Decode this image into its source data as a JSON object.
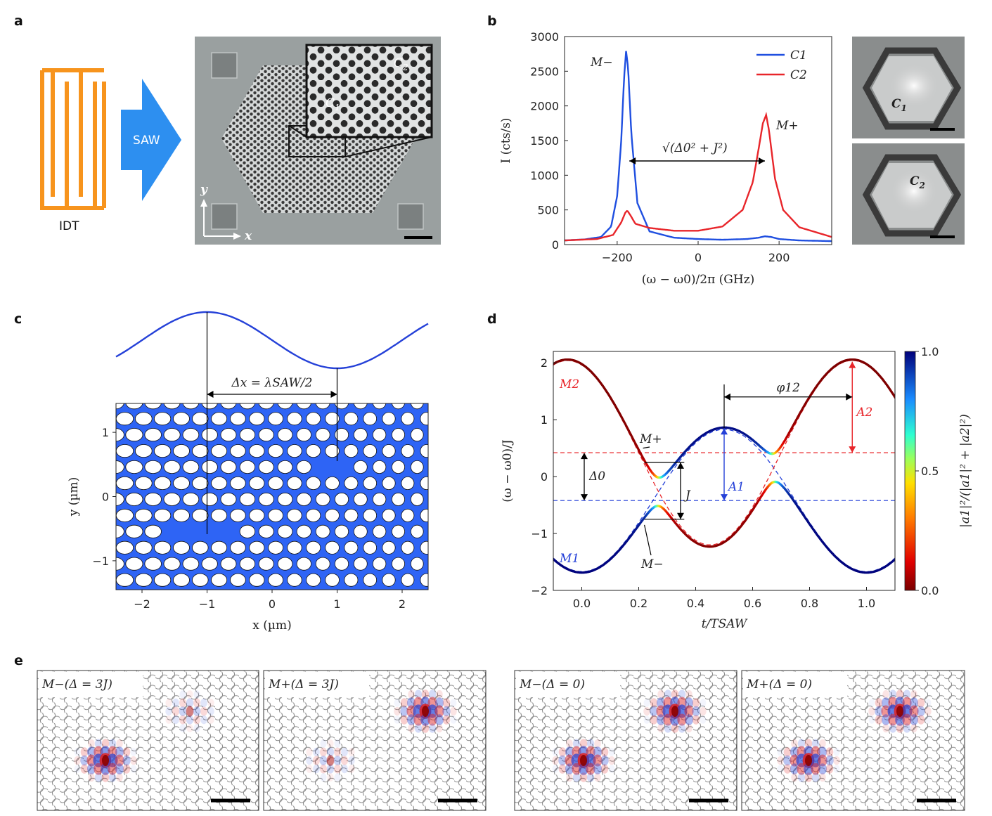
{
  "panels": {
    "a": "a",
    "b": "b",
    "c": "c",
    "d": "d",
    "e": "e"
  },
  "panel_a": {
    "idt_label": "IDT",
    "saw_label": "SAW",
    "axis_y": "y",
    "axis_x": "x",
    "c1_label": "C",
    "c1_sub": "1",
    "c2_label": "C",
    "c2_sub": "2",
    "colors": {
      "idt": "#f7941d",
      "saw": "#2d8ff0",
      "sem_bg": "#9aa0a0"
    }
  },
  "panel_b_side": {
    "c1_label": "C",
    "c1_sub": "1",
    "c2_label": "C",
    "c2_sub": "2"
  },
  "panel_e": {
    "titles": [
      "M−(Δ = 3J)",
      "M+(Δ = 3J)",
      "M−(Δ = 0)",
      "M+(Δ = 0)"
    ]
  },
  "chart_data": [
    {
      "id": "b",
      "type": "line",
      "xlabel": "(ω − ω0)/2π (GHz)",
      "ylabel": "I (cts/s)",
      "xlim": [
        -330,
        330
      ],
      "ylim": [
        0,
        3000
      ],
      "xticks": [
        -200,
        0,
        200
      ],
      "xtick_labels": [
        "−200",
        "0",
        "200"
      ],
      "yticks": [
        0,
        500,
        1000,
        1500,
        2000,
        2500,
        3000
      ],
      "ytick_labels": [
        "0",
        "500",
        "1000",
        "1500",
        "2000",
        "2500",
        "3000"
      ],
      "legend": [
        "C1",
        "C2"
      ],
      "legend_placement": "top-right",
      "annotations": [
        "M−",
        "M+",
        "√(Δ0² + J²)"
      ],
      "series": [
        {
          "name": "C1",
          "color": "#1f4fe0",
          "x": [
            -330,
            -280,
            -240,
            -215,
            -200,
            -190,
            -183,
            -178,
            -173,
            -165,
            -150,
            -120,
            -60,
            0,
            60,
            120,
            150,
            165,
            180,
            200,
            250,
            330
          ],
          "y": [
            60,
            75,
            110,
            260,
            700,
            1500,
            2400,
            2790,
            2550,
            1600,
            600,
            190,
            100,
            80,
            70,
            80,
            100,
            120,
            110,
            80,
            60,
            50
          ]
        },
        {
          "name": "C2",
          "color": "#e8252a",
          "x": [
            -330,
            -250,
            -210,
            -190,
            -180,
            -175,
            -168,
            -155,
            -120,
            -60,
            0,
            60,
            110,
            135,
            150,
            160,
            168,
            175,
            190,
            210,
            250,
            330
          ],
          "y": [
            60,
            80,
            140,
            320,
            460,
            490,
            430,
            300,
            240,
            200,
            200,
            260,
            500,
            900,
            1400,
            1750,
            1870,
            1650,
            950,
            500,
            250,
            110
          ]
        }
      ]
    },
    {
      "id": "c",
      "type": "heatmap",
      "xlabel": "x (µm)",
      "ylabel": "y (µm)",
      "xlim": [
        -2.4,
        2.4
      ],
      "ylim": [
        -1.45,
        1.45
      ],
      "xticks": [
        -2,
        -1,
        0,
        1,
        2
      ],
      "xtick_labels": [
        "−2",
        "−1",
        "0",
        "1",
        "2"
      ],
      "yticks": [
        -1,
        0,
        1
      ],
      "ytick_labels": [
        "−1",
        "0",
        "1"
      ],
      "annotation": "Δx = λSAW/2",
      "wave_annotation": "SAW displacement",
      "fill_color": "#2e64f5"
    },
    {
      "id": "d",
      "type": "line",
      "xlabel": "t/TSAW",
      "ylabel": "(ω − ω0)/J",
      "xlim": [
        -0.1,
        1.1
      ],
      "ylim": [
        -2,
        2.2
      ],
      "xticks": [
        0.0,
        0.2,
        0.4,
        0.6,
        0.8,
        1.0
      ],
      "xtick_labels": [
        "0.0",
        "0.2",
        "0.4",
        "0.6",
        "0.8",
        "1.0"
      ],
      "yticks": [
        -2,
        -1,
        0,
        1,
        2
      ],
      "ytick_labels": [
        "−2",
        "−1",
        "0",
        "1",
        "2"
      ],
      "params": {
        "J": 1,
        "A": 1.6,
        "delta0": 0.85,
        "phi12": 0.45,
        "phase1": 0.5,
        "phase2": 0.95
      },
      "annotations": [
        "M2",
        "M1",
        "M+",
        "M−",
        "Δ0",
        "J",
        "A1",
        "A2",
        "φ12"
      ],
      "colorbar": {
        "label": "|a1|²/(|a1|² + |a2|²)",
        "ticks": [
          0.0,
          0.5,
          1.0
        ],
        "tick_labels": [
          "0.0",
          "0.5",
          "1.0"
        ]
      },
      "colors": {
        "M1": "#2541d8",
        "M2": "#e8252a"
      }
    }
  ]
}
